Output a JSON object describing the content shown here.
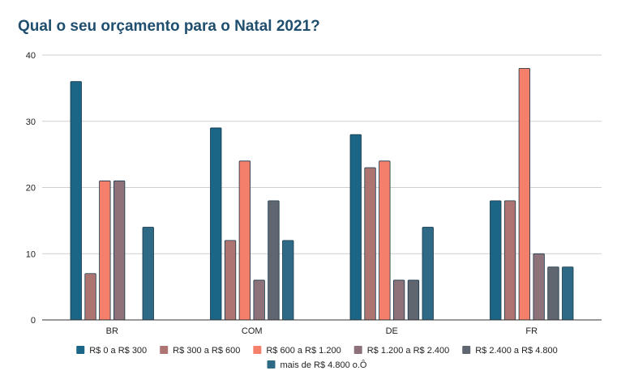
{
  "chart_data": {
    "type": "bar",
    "title": "Qual o seu orçamento para o Natal 2021?",
    "xlabel": "",
    "ylabel": "",
    "categories": [
      "BR",
      "COM",
      "DE",
      "FR"
    ],
    "ylim": [
      0,
      40
    ],
    "yticks": [
      0,
      10,
      20,
      30,
      40
    ],
    "grid": true,
    "legend_position": "bottom",
    "series": [
      {
        "name": "R$ 0 a R$ 300",
        "color": "#1b6687",
        "values": [
          36,
          29,
          28,
          18
        ]
      },
      {
        "name": "R$ 300 a R$ 600",
        "color": "#ad7471",
        "values": [
          7,
          12,
          23,
          18
        ]
      },
      {
        "name": "R$ 600 a R$ 1.200",
        "color": "#f47f6b",
        "values": [
          21,
          24,
          24,
          38
        ]
      },
      {
        "name": "R$ 1.200 a R$ 2.400",
        "color": "#8d7279",
        "values": [
          21,
          6,
          6,
          10
        ]
      },
      {
        "name": "R$ 2.400 a R$ 4.800",
        "color": "#5f6670",
        "values": [
          null,
          18,
          6,
          8
        ]
      },
      {
        "name": "mais de R$ 4.800 o.Ô",
        "color": "#2e6a86",
        "values": [
          14,
          12,
          14,
          8
        ]
      }
    ]
  }
}
